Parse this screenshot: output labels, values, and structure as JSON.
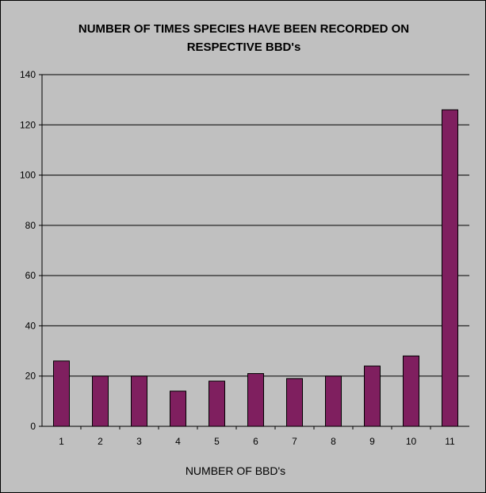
{
  "chart_data": {
    "type": "bar",
    "title_line1": "NUMBER OF TIMES SPECIES HAVE BEEN RECORDED ON",
    "title_line2": "RESPECTIVE BBD's",
    "xlabel": "NUMBER OF BBD's",
    "ylabel": "",
    "categories": [
      "1",
      "2",
      "3",
      "4",
      "5",
      "6",
      "7",
      "8",
      "9",
      "10",
      "11"
    ],
    "values": [
      26,
      20,
      20,
      14,
      18,
      21,
      19,
      20,
      24,
      28,
      126
    ],
    "ylim": [
      0,
      140
    ],
    "yticks": [
      "0",
      "20",
      "40",
      "60",
      "80",
      "100",
      "120",
      "140"
    ],
    "grid": true,
    "bar_color": "#7f1f5f",
    "background_color": "#c0c0c0"
  }
}
